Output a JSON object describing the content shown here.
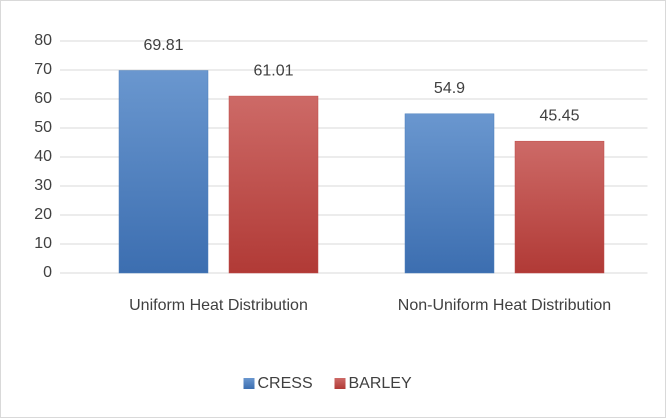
{
  "chart_data": {
    "type": "bar",
    "categories": [
      "Uniform Heat Distribution",
      "Non-Uniform Heat Distribution"
    ],
    "series": [
      {
        "name": "CRESS",
        "color": "#4a7ebb",
        "values": [
          69.81,
          54.9
        ]
      },
      {
        "name": "BARLEY",
        "color": "#be4b48",
        "values": [
          61.01,
          45.45
        ]
      }
    ],
    "ylim": [
      0,
      80
    ],
    "yticks": [
      0,
      10,
      20,
      30,
      40,
      50,
      60,
      70,
      80
    ],
    "grid": true,
    "legend": "bottom"
  }
}
